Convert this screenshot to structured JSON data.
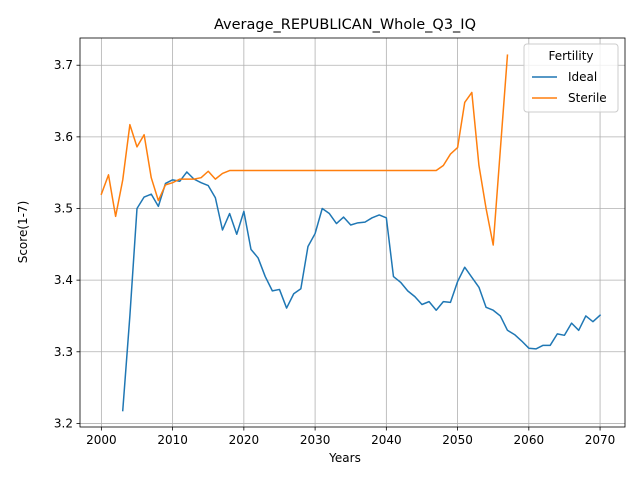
{
  "chart_data": {
    "type": "line",
    "title": "Average_REPUBLICAN_Whole_Q3_IQ",
    "xlabel": "Years",
    "ylabel": "Score(1-7)",
    "xlim": [
      1997,
      2073.5
    ],
    "ylim": [
      3.195,
      3.738
    ],
    "xticks": [
      2000,
      2010,
      2020,
      2030,
      2040,
      2050,
      2060,
      2070
    ],
    "yticks": [
      3.2,
      3.3,
      3.4,
      3.5,
      3.6,
      3.7
    ],
    "grid": true,
    "legend": {
      "title": "Fertility",
      "position": "top-right"
    },
    "series": [
      {
        "name": "Ideal",
        "color": "#1f77b4",
        "x": [
          2003,
          2004,
          2005,
          2006,
          2007,
          2008,
          2009,
          2010,
          2011,
          2012,
          2013,
          2014,
          2015,
          2016,
          2017,
          2018,
          2019,
          2020,
          2021,
          2022,
          2023,
          2024,
          2025,
          2026,
          2027,
          2028,
          2029,
          2030,
          2031,
          2032,
          2033,
          2034,
          2035,
          2036,
          2037,
          2038,
          2039,
          2040,
          2041,
          2042,
          2043,
          2044,
          2045,
          2046,
          2047,
          2048,
          2049,
          2050,
          2051,
          2052,
          2053,
          2054,
          2055,
          2056,
          2057,
          2058,
          2059,
          2060,
          2061,
          2062,
          2063,
          2064,
          2065,
          2066,
          2067,
          2068,
          2069,
          2070
        ],
        "y": [
          3.218,
          3.35,
          3.5,
          3.516,
          3.52,
          3.503,
          3.535,
          3.54,
          3.538,
          3.551,
          3.541,
          3.536,
          3.532,
          3.515,
          3.47,
          3.493,
          3.464,
          3.496,
          3.443,
          3.431,
          3.405,
          3.385,
          3.387,
          3.361,
          3.381,
          3.388,
          3.447,
          3.465,
          3.5,
          3.493,
          3.479,
          3.488,
          3.477,
          3.48,
          3.481,
          3.487,
          3.491,
          3.487,
          3.405,
          3.397,
          3.385,
          3.377,
          3.366,
          3.37,
          3.358,
          3.37,
          3.369,
          3.398,
          3.418,
          3.404,
          3.39,
          3.362,
          3.358,
          3.35,
          3.33,
          3.324,
          3.315,
          3.305,
          3.304,
          3.309,
          3.309,
          3.325,
          3.323,
          3.34,
          3.33,
          3.35,
          3.342,
          3.351
        ]
      },
      {
        "name": "Sterile",
        "color": "#ff7f0e",
        "x": [
          2000,
          2001,
          2002,
          2003,
          2004,
          2005,
          2006,
          2007,
          2008,
          2009,
          2010,
          2011,
          2012,
          2013,
          2014,
          2015,
          2016,
          2017,
          2018,
          2019,
          2020,
          2021,
          2022,
          2023,
          2024,
          2025,
          2026,
          2027,
          2028,
          2029,
          2030,
          2031,
          2032,
          2033,
          2034,
          2035,
          2036,
          2037,
          2038,
          2039,
          2040,
          2041,
          2042,
          2043,
          2044,
          2045,
          2046,
          2047,
          2048,
          2049,
          2050,
          2051,
          2052,
          2053,
          2054,
          2055,
          2056,
          2057
        ],
        "y": [
          3.52,
          3.547,
          3.489,
          3.54,
          3.617,
          3.586,
          3.603,
          3.543,
          3.511,
          3.533,
          3.536,
          3.541,
          3.541,
          3.541,
          3.543,
          3.552,
          3.541,
          3.549,
          3.553,
          3.553,
          3.553,
          3.553,
          3.553,
          3.553,
          3.553,
          3.553,
          3.553,
          3.553,
          3.553,
          3.553,
          3.553,
          3.553,
          3.553,
          3.553,
          3.553,
          3.553,
          3.553,
          3.553,
          3.553,
          3.553,
          3.553,
          3.553,
          3.553,
          3.553,
          3.553,
          3.553,
          3.553,
          3.553,
          3.56,
          3.576,
          3.585,
          3.648,
          3.662,
          3.56,
          3.5,
          3.449,
          3.582,
          3.714
        ]
      }
    ]
  }
}
